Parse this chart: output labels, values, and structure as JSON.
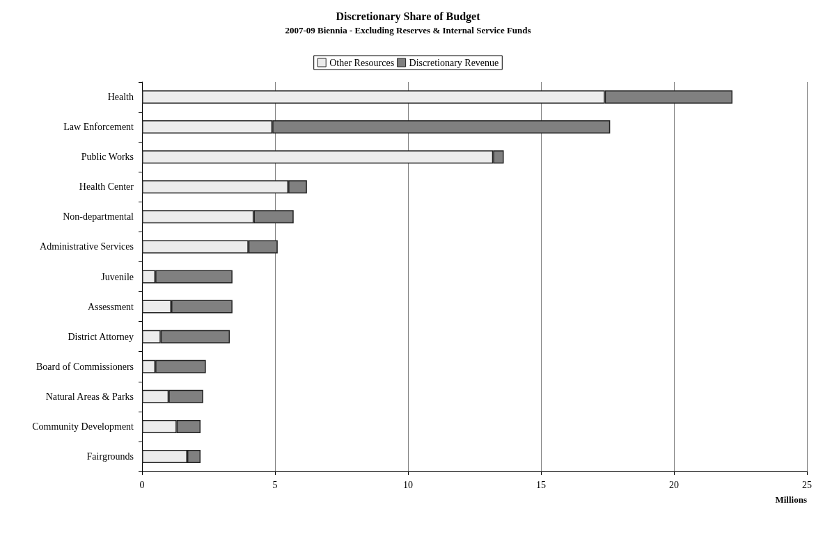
{
  "chart_data": {
    "type": "bar",
    "orientation": "horizontal",
    "stacked": true,
    "title": "Discretionary Share of Budget",
    "subtitle": "2007-09 Biennia - Excluding Reserves & Internal Service Funds",
    "xlabel": "Millions",
    "categories": [
      "Health",
      "Law Enforcement",
      "Public Works",
      "Health Center",
      "Non-departmental",
      "Administrative Services",
      "Juvenile",
      "Assessment",
      "District Attorney",
      "Board of Commissioners",
      "Natural Areas & Parks",
      "Community Development",
      "Fairgrounds"
    ],
    "series": [
      {
        "name": "Other Resources",
        "color": "#ececec",
        "values": [
          17.4,
          4.9,
          13.2,
          5.5,
          4.2,
          4.0,
          0.5,
          1.1,
          0.7,
          0.5,
          1.0,
          1.3,
          1.7
        ]
      },
      {
        "name": "Discretionary Revenue",
        "color": "#808080",
        "values": [
          4.8,
          12.7,
          0.4,
          0.7,
          1.5,
          1.1,
          2.9,
          2.3,
          2.6,
          1.9,
          1.3,
          0.9,
          0.5
        ]
      }
    ],
    "xlim": [
      0,
      25
    ],
    "xticks": [
      0,
      5,
      10,
      15,
      20,
      25
    ],
    "grid": "x",
    "legend": "top"
  }
}
